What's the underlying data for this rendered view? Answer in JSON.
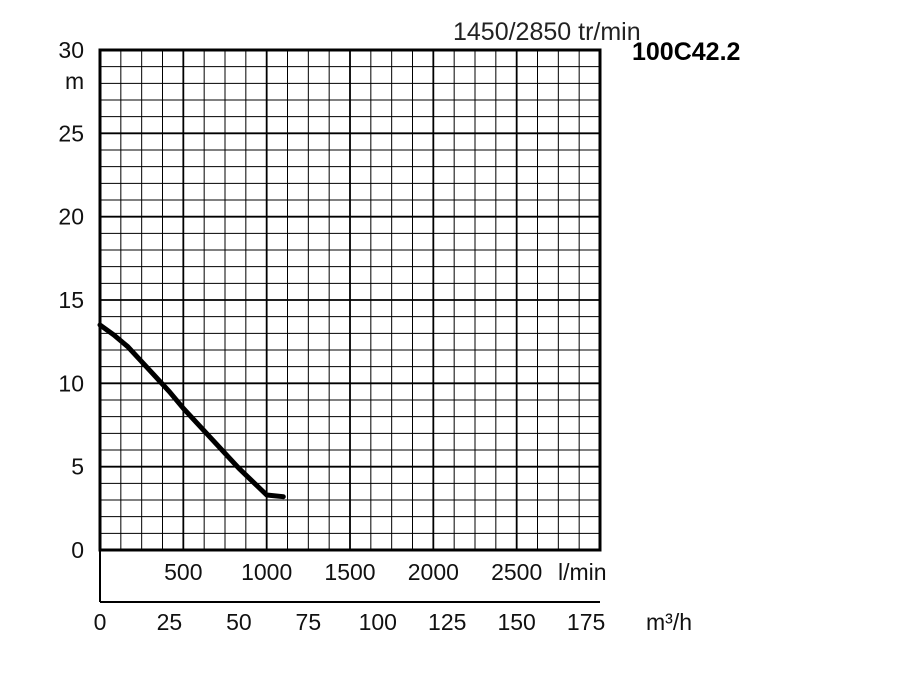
{
  "chart_data": {
    "type": "line",
    "header": "1450/2850 tr/min",
    "model": "100C42.2",
    "y_unit": "m",
    "ylim": [
      0,
      30
    ],
    "y_ticks": [
      "0",
      "5",
      "10",
      "15",
      "20",
      "25",
      "30"
    ],
    "y_tick_values": [
      0,
      5,
      10,
      15,
      20,
      25,
      30
    ],
    "x_ticks_lmin": [
      "500",
      "1000",
      "1500",
      "2000",
      "2500"
    ],
    "x_tick_values_lmin": [
      500,
      1000,
      1500,
      2000,
      2500
    ],
    "x_unit_lmin": "l/min",
    "x_ticks_m3h": [
      "0",
      "25",
      "50",
      "75",
      "100",
      "125",
      "150",
      "175"
    ],
    "x_tick_values_m3h": [
      0,
      25,
      50,
      75,
      100,
      125,
      150,
      175
    ],
    "x_unit_m3h": "m³/h",
    "xlim_m3h": [
      0,
      180
    ],
    "grid": true,
    "series": [
      {
        "x": [
          0,
          5,
          10,
          15,
          20,
          25,
          30,
          35,
          40,
          45,
          50,
          55,
          60,
          66
        ],
        "y": [
          13.5,
          12.9,
          12.2,
          11.3,
          10.4,
          9.5,
          8.5,
          7.6,
          6.7,
          5.8,
          4.9,
          4.1,
          3.3,
          3.2
        ]
      }
    ]
  }
}
